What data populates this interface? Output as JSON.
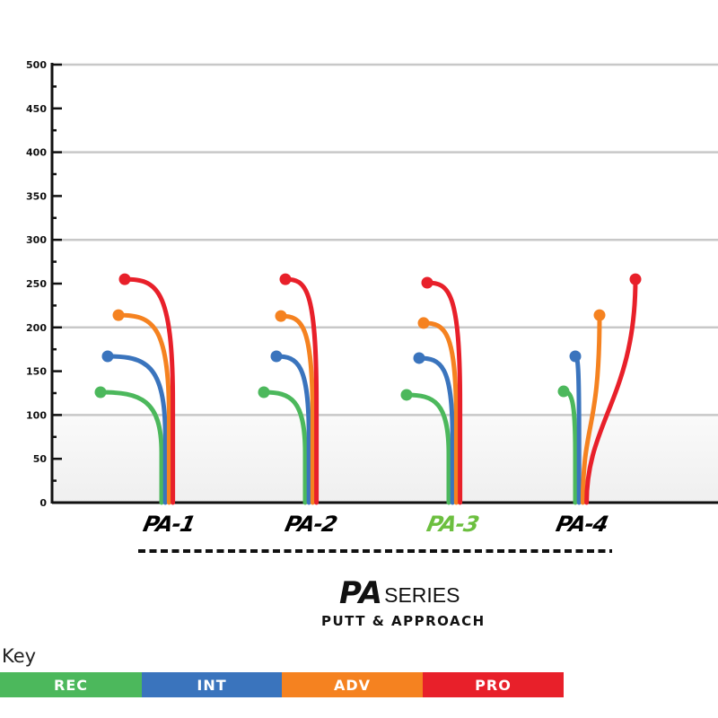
{
  "chart_data": {
    "type": "line",
    "title": "",
    "ylabel": "",
    "ylim": [
      0,
      500
    ],
    "yticks": [
      "0",
      "50",
      "100",
      "150",
      "200",
      "250",
      "300",
      "350",
      "400",
      "450",
      "500"
    ],
    "grid": true,
    "categories": [
      "PA-1",
      "PA-2",
      "PA-3",
      "PA-4"
    ],
    "category_colors": [
      "#111111",
      "#111111",
      "#6cbf3f",
      "#111111"
    ],
    "fade_direction": [
      "left",
      "left",
      "left",
      "left-pro-right"
    ],
    "series": [
      {
        "name": "REC",
        "color": "#4cb85c",
        "values": [
          126,
          126,
          123,
          127
        ]
      },
      {
        "name": "INT",
        "color": "#3a74bd",
        "values": [
          167,
          167,
          165,
          167
        ]
      },
      {
        "name": "ADV",
        "color": "#f58220",
        "values": [
          214,
          213,
          205,
          214
        ]
      },
      {
        "name": "PRO",
        "color": "#e8202a",
        "values": [
          255,
          255,
          251,
          255
        ]
      }
    ]
  },
  "brand": {
    "mark": "PA",
    "series": "SERIES",
    "subtitle": "PUTT & APPROACH"
  },
  "key": {
    "title": "Key",
    "items": [
      {
        "label": "REC",
        "color": "#4cb85c"
      },
      {
        "label": "INT",
        "color": "#3a74bd"
      },
      {
        "label": "ADV",
        "color": "#f58220"
      },
      {
        "label": "PRO",
        "color": "#e8202a"
      }
    ]
  }
}
